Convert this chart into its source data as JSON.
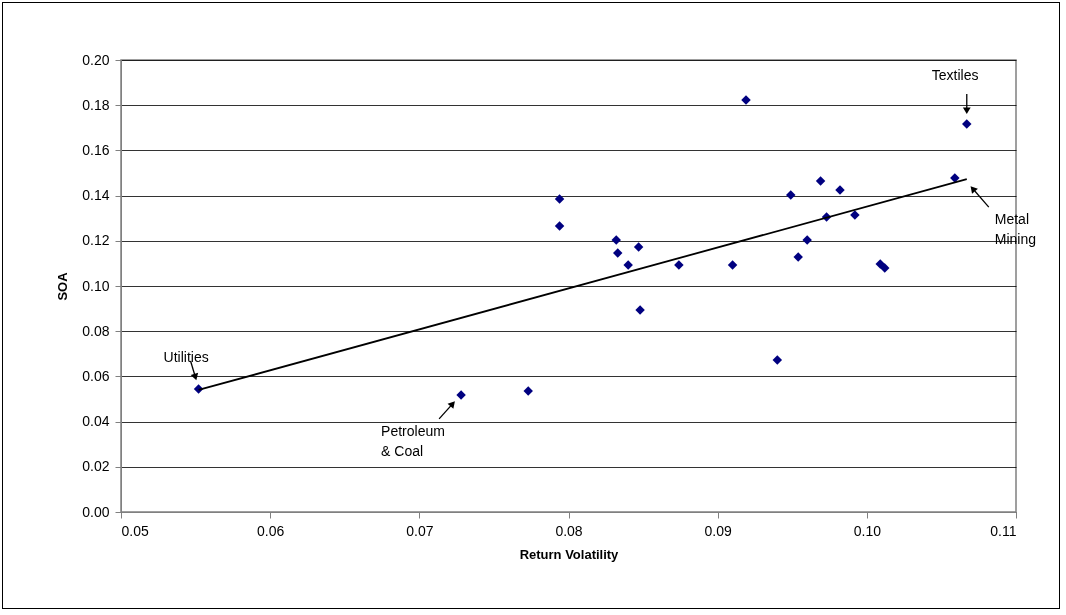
{
  "chart_data": {
    "type": "scatter",
    "xlabel": "Return Volatility",
    "ylabel": "SOA",
    "grid": "y",
    "xlim": [
      0.05,
      0.11
    ],
    "xticks": [
      0.05,
      0.06,
      0.07,
      0.08,
      0.09,
      {
        "value": 0.1,
        "label": "0.10"
      },
      0.11
    ],
    "ylim": [
      0,
      0.2
    ],
    "yticks": [
      {
        "value": 0,
        "label": "0.00"
      },
      0.02,
      0.04,
      0.06,
      0.08,
      {
        "value": 0.1,
        "label": "0.10"
      },
      0.12,
      0.14,
      0.16,
      0.18,
      {
        "value": 0.2,
        "label": "0.20"
      }
    ],
    "series": [
      {
        "marker": "diamond",
        "color": "#000080",
        "x": [
          0.0552,
          0.0728,
          0.0773,
          0.0794,
          0.0794,
          0.0832,
          0.0833,
          0.084,
          0.0847,
          0.0848,
          0.0874,
          0.091,
          0.0919,
          0.094,
          0.0949,
          0.0954,
          0.096,
          0.0969,
          0.0973,
          0.0982,
          0.0992,
          0.1009,
          0.1012,
          0.1059,
          0.1067
        ],
        "values": [
          0.0544,
          0.0518,
          0.0535,
          0.1265,
          0.1385,
          0.1204,
          0.1146,
          0.1093,
          0.1173,
          0.0894,
          0.1093,
          0.1093,
          0.1823,
          0.0673,
          0.1403,
          0.1128,
          0.1204,
          0.1465,
          0.1305,
          0.1425,
          0.1314,
          0.1097,
          0.108,
          0.1478,
          0.1717
        ]
      },
      {
        "type": "line",
        "marker": "none",
        "color": "#000000",
        "x": [
          0.0552,
          0.1067
        ],
        "values": [
          0.054,
          0.1473
        ]
      }
    ],
    "annotations": [
      {
        "text": "Utilities",
        "x": 0.0552,
        "y": 0.0544
      },
      {
        "text": "Petroleum\n& Coal",
        "x": 0.0728,
        "y": 0.0518
      },
      {
        "text": "Textiles",
        "x": 0.1067,
        "y": 0.1717
      },
      {
        "text": "Metal\nMining",
        "x": 0.1067,
        "y": 0.1473
      }
    ]
  }
}
